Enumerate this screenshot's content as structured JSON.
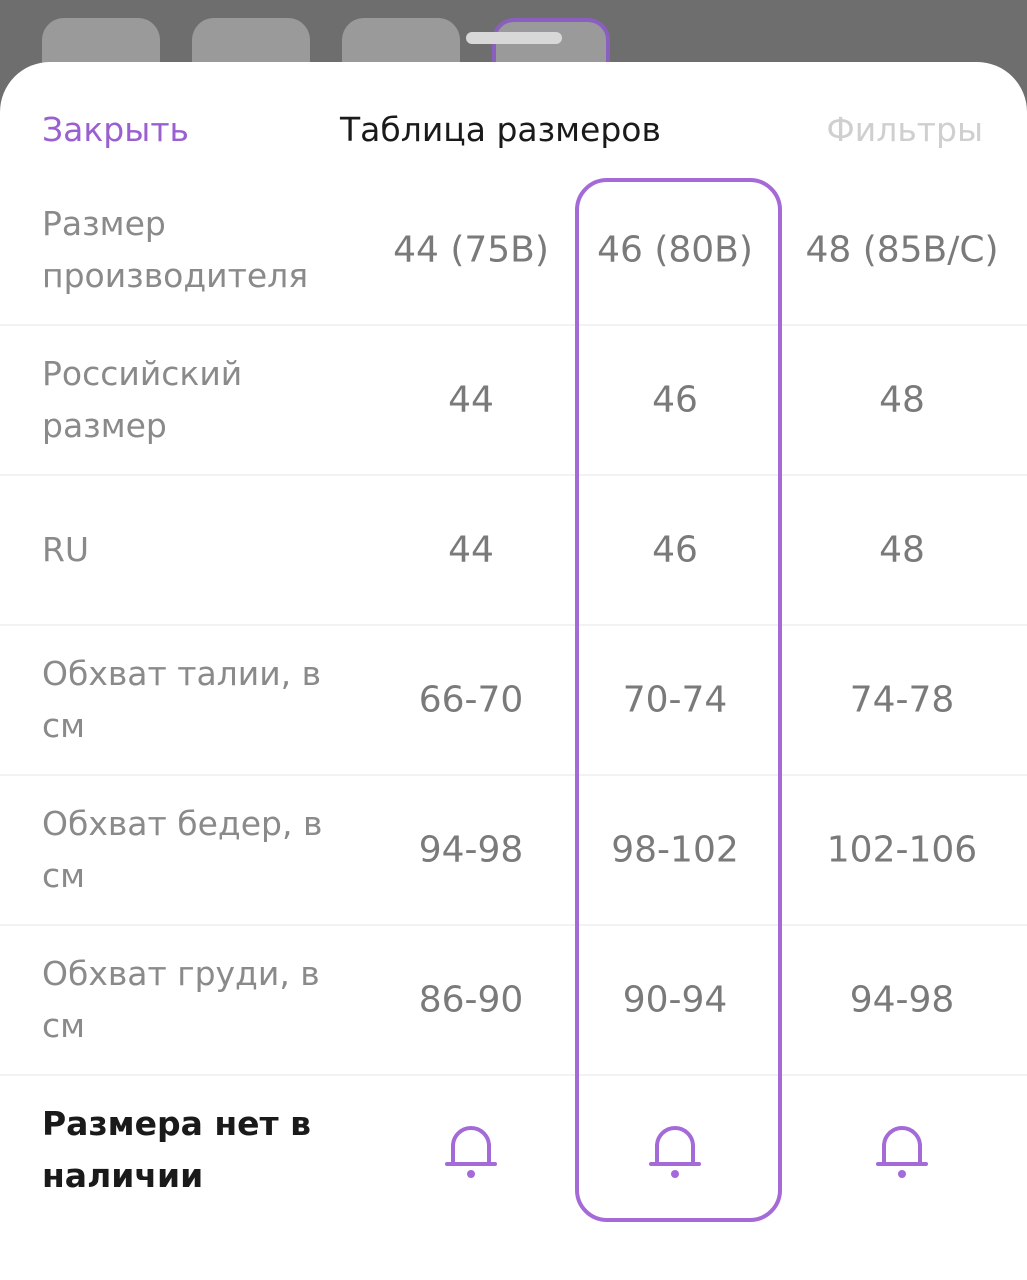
{
  "header": {
    "close": "Закрыть",
    "title": "Таблица размеров",
    "filters": "Фильтры"
  },
  "table": {
    "rows": [
      [
        "Размер производителя",
        "44 (75B)",
        "46 (80B)",
        "48 (85B/C)"
      ],
      [
        "Российский размер",
        "44",
        "46",
        "48"
      ],
      [
        "RU",
        "44",
        "46",
        "48"
      ],
      [
        "Обхват талии, в см",
        "66-70",
        "70-74",
        "74-78"
      ],
      [
        "Обхват бедер, в см",
        "94-98",
        "98-102",
        "102-106"
      ],
      [
        "Обхват груди, в см",
        "86-90",
        "90-94",
        "94-98"
      ]
    ]
  },
  "footer": {
    "label": "Размера нет в наличии"
  }
}
